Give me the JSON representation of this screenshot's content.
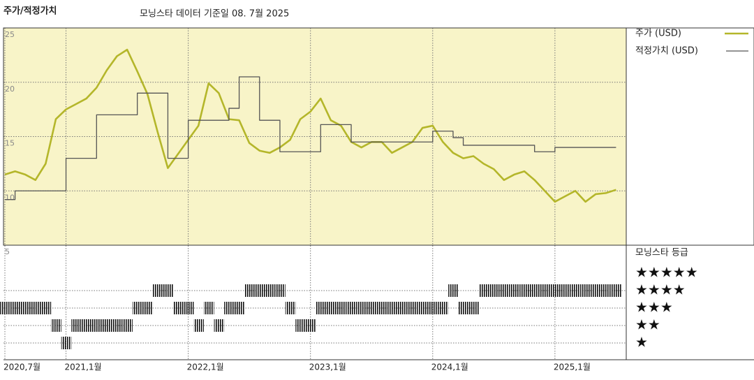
{
  "chart_data": [
    {
      "type": "line",
      "title": "주가/적정가치",
      "subtitle": "모닝스타 데이터 기준일 08. 7월 2025",
      "x": [
        "2020-07",
        "2020-08",
        "2020-09",
        "2020-10",
        "2020-11",
        "2020-12",
        "2021-01",
        "2021-02",
        "2021-03",
        "2021-04",
        "2021-05",
        "2021-06",
        "2021-07",
        "2021-08",
        "2021-09",
        "2021-10",
        "2021-11",
        "2021-12",
        "2022-01",
        "2022-02",
        "2022-03",
        "2022-04",
        "2022-05",
        "2022-06",
        "2022-07",
        "2022-08",
        "2022-09",
        "2022-10",
        "2022-11",
        "2022-12",
        "2023-01",
        "2023-02",
        "2023-03",
        "2023-04",
        "2023-05",
        "2023-06",
        "2023-07",
        "2023-08",
        "2023-09",
        "2023-10",
        "2023-11",
        "2023-12",
        "2024-01",
        "2024-02",
        "2024-03",
        "2024-04",
        "2024-05",
        "2024-06",
        "2024-07",
        "2024-08",
        "2024-09",
        "2024-10",
        "2024-11",
        "2024-12",
        "2025-01",
        "2025-02",
        "2025-03",
        "2025-04",
        "2025-05",
        "2025-06",
        "2025-07"
      ],
      "xlim": [
        "2020-07",
        "2025-08"
      ],
      "xticks": [
        {
          "value": "2020-07",
          "label": "2020,7월"
        },
        {
          "value": "2021-01",
          "label": "2021,1월"
        },
        {
          "value": "2022-01",
          "label": "2022,1월"
        },
        {
          "value": "2023-01",
          "label": "2023,1월"
        },
        {
          "value": "2024-01",
          "label": "2024,1월"
        },
        {
          "value": "2025-01",
          "label": "2025,1월"
        }
      ],
      "ylim": [
        5,
        25
      ],
      "yticks": [
        5,
        10,
        15,
        20,
        25
      ],
      "grid": true,
      "series": [
        {
          "name": "주가 (USD)",
          "color": "#b4b62a",
          "values": [
            11.5,
            11.8,
            11.5,
            11.0,
            12.5,
            16.6,
            17.5,
            18,
            18.5,
            19.5,
            21.1,
            22.4,
            23,
            21,
            18.9,
            15.4,
            12.1,
            13.4,
            14.7,
            16,
            19.9,
            19,
            16.6,
            16.5,
            14.4,
            13.7,
            13.5,
            14,
            14.7,
            16.6,
            17.3,
            18.5,
            16.5,
            16,
            14.5,
            14,
            14.5,
            14.5,
            13.5,
            14,
            14.5,
            15.8,
            16,
            14.5,
            13.5,
            13,
            13.2,
            12.5,
            12,
            11,
            11.5,
            11.8,
            11,
            10,
            9,
            9.5,
            10,
            9,
            9.7,
            9.8,
            10.1
          ]
        },
        {
          "name": "적정가치 (USD)",
          "color": "#555555",
          "step": true,
          "values": [
            9.2,
            10,
            10,
            10,
            10,
            10,
            13,
            13,
            13,
            17,
            17,
            17,
            17,
            19,
            19,
            19,
            13,
            13,
            16.5,
            16.5,
            16.5,
            16.5,
            17.6,
            20.5,
            20.5,
            16.5,
            16.5,
            13.6,
            13.6,
            13.6,
            13.6,
            16.1,
            16.1,
            16.1,
            14.5,
            14.5,
            14.5,
            14.5,
            14.5,
            14.5,
            14.5,
            14.5,
            15.5,
            15.5,
            14.9,
            14.2,
            14.2,
            14.2,
            14.2,
            14.2,
            14.2,
            14.2,
            13.6,
            13.6,
            14,
            14,
            14,
            14,
            14,
            14,
            14
          ]
        }
      ]
    },
    {
      "type": "rating",
      "title": "모닝스타 등급",
      "color": "#111111",
      "levels": [
        {
          "value": 5,
          "label": "★★★★★"
        },
        {
          "value": 4,
          "label": "★★★★"
        },
        {
          "value": 3,
          "label": "★★★"
        },
        {
          "value": 2,
          "label": "★★"
        },
        {
          "value": 1,
          "label": "★"
        }
      ],
      "values": [
        3,
        3,
        3,
        3,
        3,
        2,
        1,
        2,
        2,
        2,
        2,
        2,
        2,
        3,
        3,
        4,
        4,
        3,
        3,
        2,
        3,
        2,
        3,
        3,
        4,
        4,
        4,
        4,
        3,
        2,
        2,
        3,
        3,
        3,
        3,
        3,
        3,
        3,
        3,
        3,
        3,
        3,
        3,
        3,
        4,
        3,
        3,
        4,
        4,
        4,
        4,
        4,
        4,
        4,
        4,
        4,
        4,
        4,
        4,
        4,
        4
      ]
    }
  ]
}
